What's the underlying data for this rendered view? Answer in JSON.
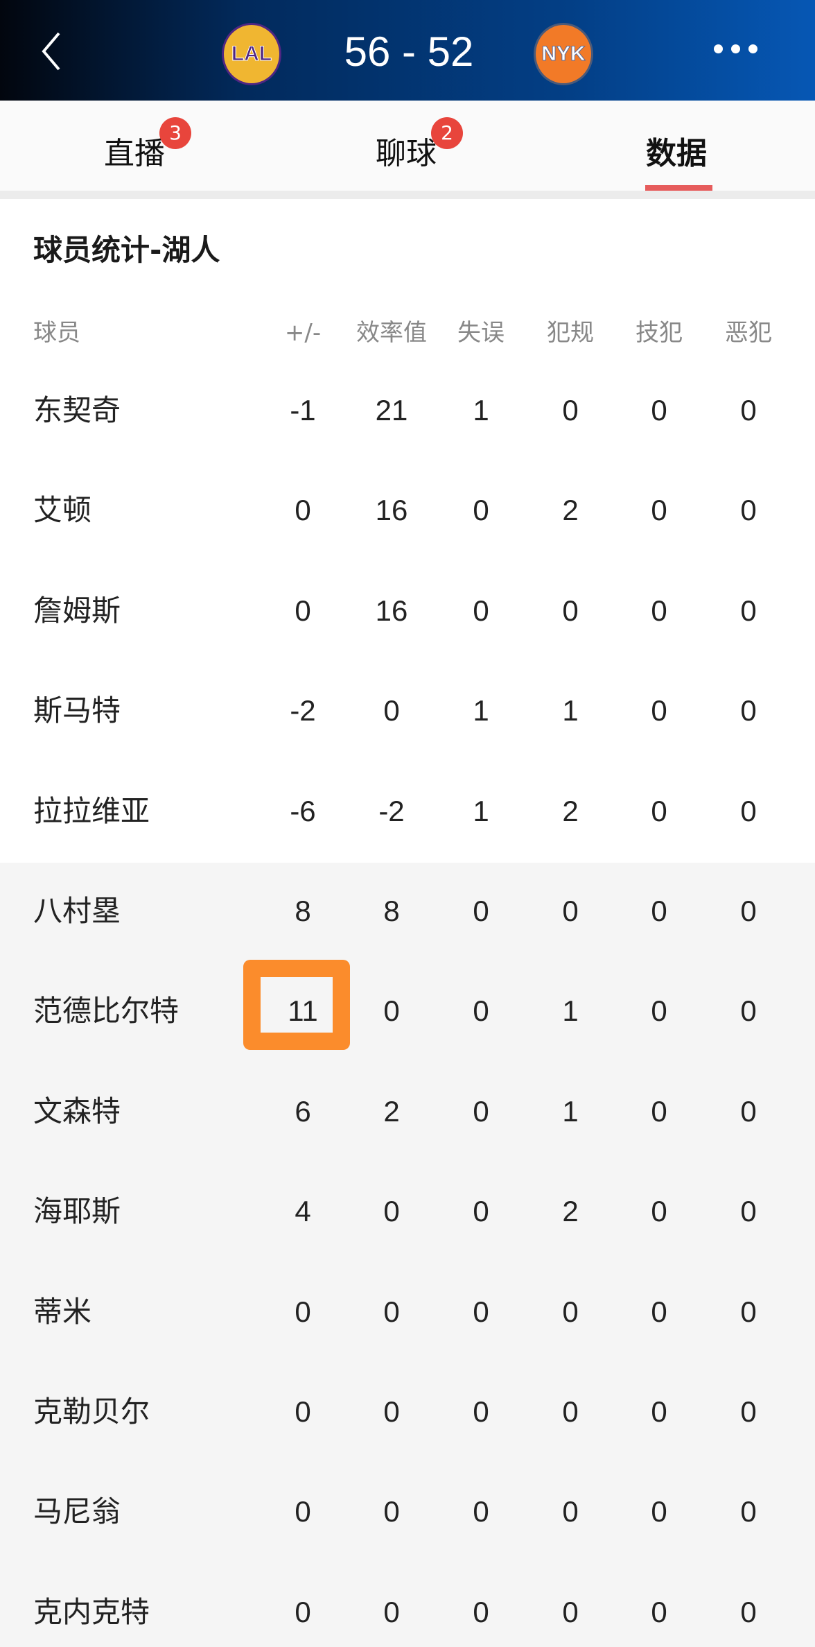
{
  "header": {
    "home_logo": "LAL",
    "away_logo": "NYK",
    "score": "56 - 52",
    "back_icon": "chevron-left-icon",
    "more_icon": "more-horizontal-icon"
  },
  "tabs": [
    {
      "label": "直播",
      "badge": "3"
    },
    {
      "label": "聊球",
      "badge": "2"
    },
    {
      "label": "数据",
      "active": true
    }
  ],
  "section": {
    "title": "球员统计-湖人"
  },
  "columns": [
    "球员",
    "+/-",
    "效率值",
    "失误",
    "犯规",
    "技犯",
    "恶犯"
  ],
  "players": [
    {
      "name": "东契奇",
      "stats": [
        "-1",
        "21",
        "1",
        "0",
        "0",
        "0"
      ]
    },
    {
      "name": "艾顿",
      "stats": [
        "0",
        "16",
        "0",
        "2",
        "0",
        "0"
      ]
    },
    {
      "name": "詹姆斯",
      "stats": [
        "0",
        "16",
        "0",
        "0",
        "0",
        "0"
      ]
    },
    {
      "name": "斯马特",
      "stats": [
        "-2",
        "0",
        "1",
        "1",
        "0",
        "0"
      ]
    },
    {
      "name": "拉拉维亚",
      "stats": [
        "-6",
        "-2",
        "1",
        "2",
        "0",
        "0"
      ]
    },
    {
      "name": "八村塁",
      "stats": [
        "8",
        "8",
        "0",
        "0",
        "0",
        "0"
      ]
    },
    {
      "name": "范德比尔特",
      "stats": [
        "11",
        "0",
        "0",
        "1",
        "0",
        "0"
      ]
    },
    {
      "name": "文森特",
      "stats": [
        "6",
        "2",
        "0",
        "1",
        "0",
        "0"
      ]
    },
    {
      "name": "海耶斯",
      "stats": [
        "4",
        "0",
        "0",
        "2",
        "0",
        "0"
      ]
    },
    {
      "name": "蒂米",
      "stats": [
        "0",
        "0",
        "0",
        "0",
        "0",
        "0"
      ]
    },
    {
      "name": "克勒贝尔",
      "stats": [
        "0",
        "0",
        "0",
        "0",
        "0",
        "0"
      ]
    },
    {
      "name": "马尼翁",
      "stats": [
        "0",
        "0",
        "0",
        "0",
        "0",
        "0"
      ]
    },
    {
      "name": "克内克特",
      "stats": [
        "0",
        "0",
        "0",
        "0",
        "0",
        "0"
      ]
    }
  ],
  "highlight": {
    "player": "范德比尔特",
    "column": "+/-",
    "color": "#fb8c2c"
  },
  "colors": {
    "header_dark": "#02060e",
    "header_blue": "#0657b4",
    "tab_underline": "#e65c5c",
    "badge": "#e8453c"
  }
}
